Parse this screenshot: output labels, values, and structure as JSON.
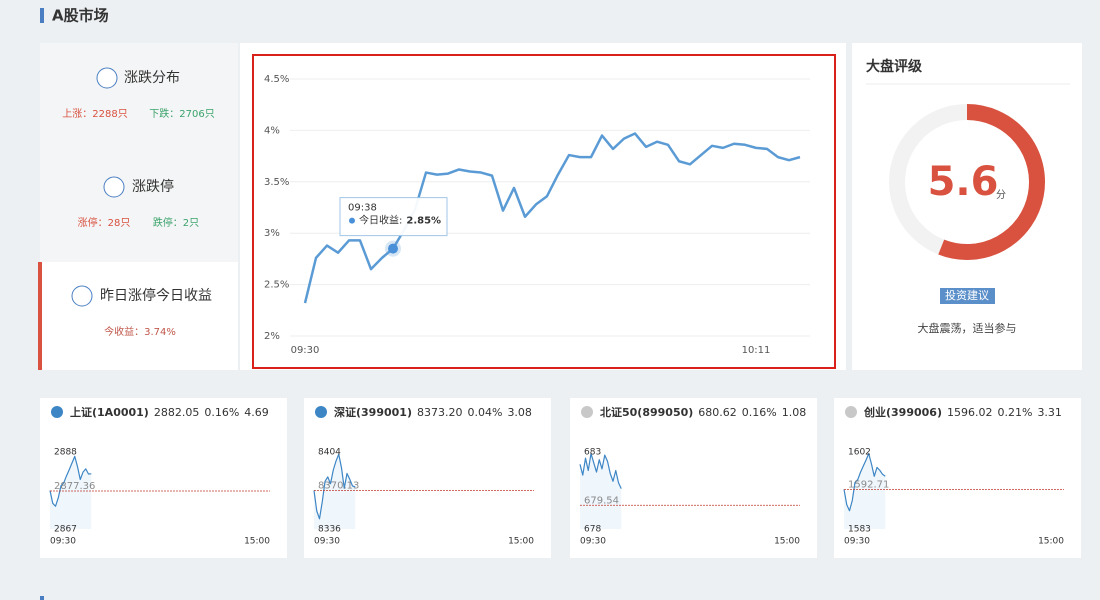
{
  "header": {
    "title": "A股市场"
  },
  "summary": [
    {
      "title": "涨跌分布",
      "up": "上涨：2288只",
      "down": "下跌：2706只"
    },
    {
      "title": "涨跌停",
      "up": "涨停：28只",
      "down": "跌停：2只"
    },
    {
      "title": "昨日涨停今日收益",
      "up": "今收益：3.74%"
    }
  ],
  "chart_data": [
    {
      "type": "line",
      "color": "#5b9bd5",
      "x": [
        0,
        1,
        2,
        3,
        4,
        5,
        6,
        7,
        8,
        9,
        10,
        11,
        12,
        13,
        14,
        15,
        16,
        17,
        18,
        19,
        20,
        21,
        22,
        23,
        24,
        25,
        26,
        27,
        28,
        29,
        30,
        31,
        32,
        33,
        34,
        35,
        36,
        37,
        38,
        39,
        40,
        41,
        42,
        43,
        44,
        45
      ],
      "values": [
        2.32,
        2.76,
        2.88,
        2.81,
        2.93,
        2.93,
        2.65,
        2.76,
        2.85,
        3.03,
        3.23,
        3.59,
        3.57,
        3.58,
        3.62,
        3.6,
        3.59,
        3.56,
        3.22,
        3.44,
        3.16,
        3.28,
        3.36,
        3.57,
        3.76,
        3.74,
        3.74,
        3.95,
        3.82,
        3.92,
        3.97,
        3.84,
        3.89,
        3.86,
        3.7,
        3.67,
        3.76,
        3.85,
        3.83,
        3.87,
        3.86,
        3.83,
        3.82,
        3.74,
        3.71,
        3.74
      ],
      "xlim": [
        0,
        45
      ],
      "xticks": [
        {
          "value": 0,
          "label": "09:30"
        },
        {
          "value": 41,
          "label": "10:11"
        }
      ],
      "ylim": [
        2,
        4.5
      ],
      "yticks": [
        {
          "value": 2,
          "label": "2%"
        },
        {
          "value": 2.5,
          "label": "2.5%"
        },
        {
          "value": 3,
          "label": "3%"
        },
        {
          "value": 3.5,
          "label": "3.5%"
        },
        {
          "value": 4,
          "label": "4%"
        },
        {
          "value": 4.5,
          "label": "4.5%"
        }
      ],
      "grid": true,
      "tooltip": {
        "index": 8,
        "time": "09:38",
        "label": "今日收益:",
        "value": "2.85%"
      }
    },
    {
      "type": "line",
      "title": "上证(1A0001)",
      "price": "2882.05",
      "change": "0.16%",
      "amount": "4.69",
      "color": "#3d86c6",
      "icon_color": "#3d86c6",
      "x": [
        0,
        3,
        6,
        9,
        12,
        15,
        18,
        21,
        24,
        27,
        30,
        33,
        36,
        39,
        42,
        45
      ],
      "values": [
        2877.5,
        2874,
        2873.2,
        2875.5,
        2878.8,
        2879.6,
        2881.5,
        2883.2,
        2885,
        2886.8,
        2884,
        2880.5,
        2882.5,
        2883.4,
        2882,
        2882.05
      ],
      "baseline": 2877.36,
      "xlim": [
        0,
        240
      ],
      "xticks": [
        {
          "value": 0,
          "label": "09:30"
        },
        {
          "value": 240,
          "label": "15:00"
        }
      ],
      "ylim": [
        2867,
        2888
      ],
      "yticks": [
        2867,
        2888
      ]
    },
    {
      "type": "line",
      "title": "深证(399001)",
      "price": "8373.20",
      "change": "0.04%",
      "amount": "3.08",
      "color": "#3d86c6",
      "icon_color": "#3d86c6",
      "x": [
        0,
        3,
        6,
        9,
        12,
        15,
        18,
        21,
        24,
        27,
        30,
        33,
        36,
        39,
        42,
        45
      ],
      "values": [
        8370,
        8352,
        8345,
        8360,
        8378,
        8382,
        8376,
        8388,
        8396,
        8402,
        8390,
        8372,
        8385,
        8380,
        8374,
        8373.2
      ],
      "baseline": 8370.13,
      "xlim": [
        0,
        240
      ],
      "xticks": [
        {
          "value": 0,
          "label": "09:30"
        },
        {
          "value": 240,
          "label": "15:00"
        }
      ],
      "ylim": [
        8336,
        8404
      ],
      "yticks": [
        8336,
        8404
      ]
    },
    {
      "type": "line",
      "title": "北证50(899050)",
      "price": "680.62",
      "change": "0.16%",
      "amount": "1.08",
      "color": "#3d86c6",
      "icon_color": "#c8c8c8",
      "x": [
        0,
        3,
        6,
        9,
        12,
        15,
        18,
        21,
        24,
        27,
        30,
        33,
        36,
        39,
        42,
        45
      ],
      "values": [
        682.2,
        681.5,
        682.6,
        681.8,
        682.9,
        682.3,
        681.7,
        682.5,
        681.9,
        682.8,
        682.4,
        681.6,
        681.1,
        681.8,
        681.0,
        680.62
      ],
      "baseline": 679.54,
      "xlim": [
        0,
        240
      ],
      "xticks": [
        {
          "value": 0,
          "label": "09:30"
        },
        {
          "value": 240,
          "label": "15:00"
        }
      ],
      "ylim": [
        678,
        683
      ],
      "yticks": [
        678,
        683
      ]
    },
    {
      "type": "line",
      "title": "创业(399006)",
      "price": "1596.02",
      "change": "0.21%",
      "amount": "3.31",
      "color": "#3d86c6",
      "icon_color": "#c8c8c8",
      "x": [
        0,
        3,
        6,
        9,
        12,
        15,
        18,
        21,
        24,
        27,
        30,
        33,
        36,
        39,
        42,
        45
      ],
      "values": [
        1592.8,
        1589,
        1587.5,
        1590,
        1594.5,
        1595.2,
        1597,
        1598.5,
        1600,
        1601.6,
        1599,
        1596,
        1598.2,
        1597.5,
        1596.5,
        1596.02
      ],
      "baseline": 1592.71,
      "xlim": [
        0,
        240
      ],
      "xticks": [
        {
          "value": 0,
          "label": "09:30"
        },
        {
          "value": 240,
          "label": "15:00"
        }
      ],
      "ylim": [
        1583,
        1602
      ],
      "yticks": [
        1583,
        1602
      ]
    }
  ],
  "rating": {
    "title": "大盘评级",
    "value": 5.6,
    "lim": [
      0,
      10
    ],
    "unit": "分",
    "color": "#d9523f",
    "badge": "投资建议",
    "advice": "大盘震荡，适当参与"
  }
}
